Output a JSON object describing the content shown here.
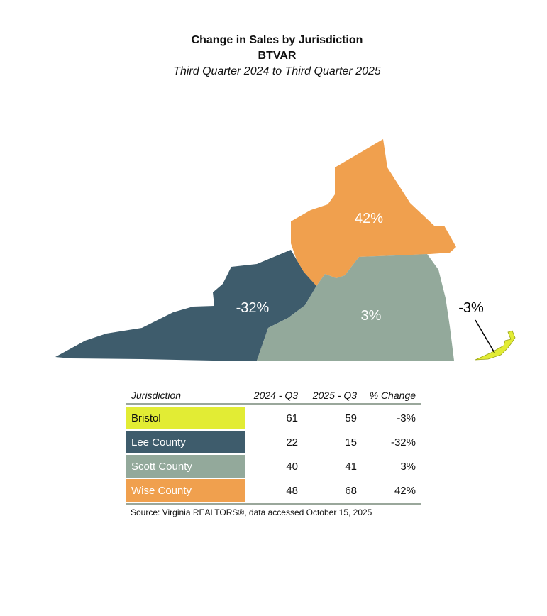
{
  "title": "Change in Sales by Jurisdiction",
  "subtitle": "BTVAR",
  "period": "Third Quarter 2024 to Third Quarter 2025",
  "colors": {
    "bristol": "#e2ec34",
    "lee": "#3e5c6c",
    "scott": "#93a99b",
    "wise": "#f0a04e"
  },
  "map_labels": {
    "wise": "42%",
    "lee": "-32%",
    "scott": "3%",
    "bristol": "-3%"
  },
  "table": {
    "headers": [
      "Jurisdiction",
      "2024 - Q3",
      "2025 - Q3",
      "% Change"
    ],
    "rows": [
      {
        "name": "Bristol",
        "q3_2024": "61",
        "q3_2025": "59",
        "change": "-3%"
      },
      {
        "name": "Lee County",
        "q3_2024": "22",
        "q3_2025": "15",
        "change": "-32%"
      },
      {
        "name": "Scott County",
        "q3_2024": "40",
        "q3_2025": "41",
        "change": "3%"
      },
      {
        "name": "Wise County",
        "q3_2024": "48",
        "q3_2025": "68",
        "change": "42%"
      }
    ]
  },
  "source": "Source: Virginia REALTORS®, data accessed October 15, 2025"
}
